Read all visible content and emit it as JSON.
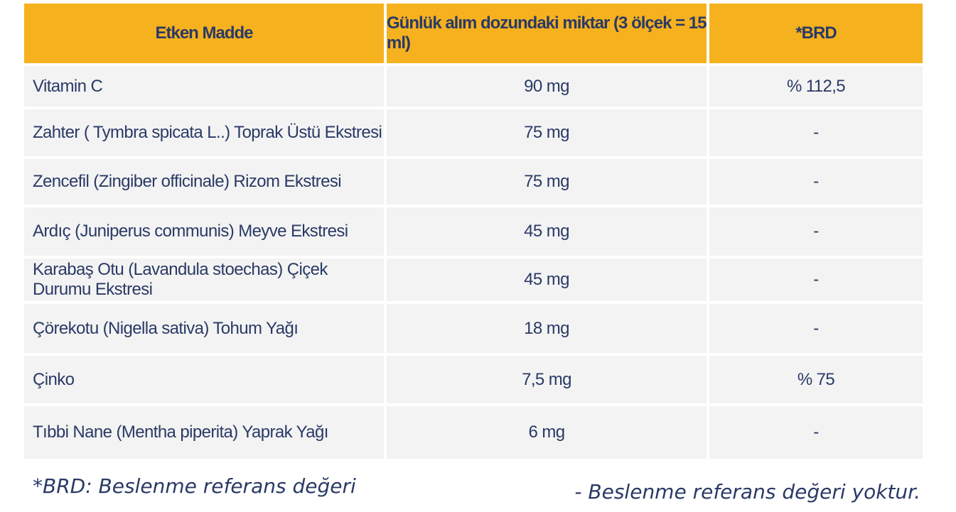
{
  "table": {
    "headers": [
      "Etken Madde",
      "Günlük alım dozundaki miktar (3 ölçek = 15 ml)",
      "*BRD"
    ],
    "rows": [
      [
        "Vitamin C",
        "90 mg",
        "% 112,5"
      ],
      [
        "Zahter ( Tymbra spicata L..) Toprak Üstü Ekstresi",
        "75 mg",
        "-"
      ],
      [
        "Zencefil (Zingiber officinale) Rizom Ekstresi",
        "75 mg",
        "-"
      ],
      [
        "Ardıç (Juniperus communis) Meyve Ekstresi",
        "45 mg",
        "-"
      ],
      [
        "Karabaş Otu (Lavandula stoechas) Çiçek Durumu Ekstresi",
        "45 mg",
        "-"
      ],
      [
        "Çörekotu (Nigella sativa) Tohum Yağı",
        "18 mg",
        "-"
      ],
      [
        "Çinko",
        "7,5 mg",
        "% 75"
      ],
      [
        "Tıbbi Nane (Mentha piperita) Yaprak Yağı",
        "6 mg",
        "-"
      ]
    ]
  },
  "footnotes": {
    "brd": "*BRD: Beslenme referans değeri",
    "none": "- Beslenme referans değeri yoktur."
  },
  "colors": {
    "header_bg": "#f6b11e",
    "row_bg": "#f3f3f3",
    "text": "#2a3a66"
  }
}
